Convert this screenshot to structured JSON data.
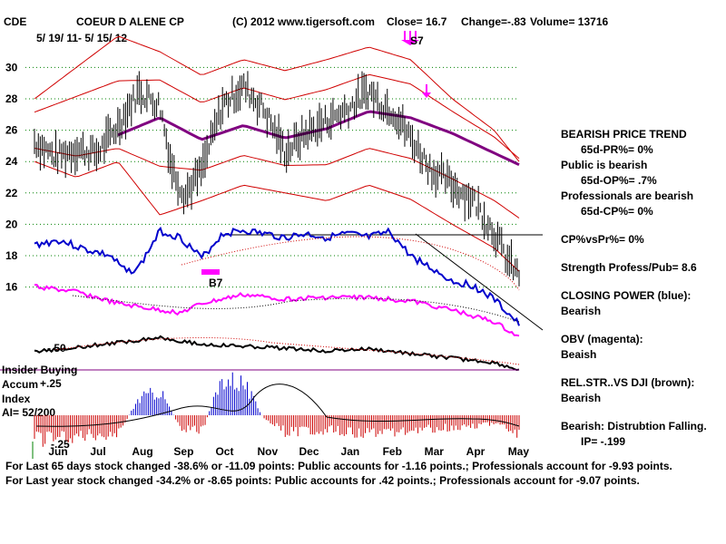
{
  "header": {
    "ticker": "CDE",
    "company": "COEUR D ALENE CP",
    "copyright": "(C) 2012 www.tigersoft.com",
    "close": "Close=  16.7",
    "change": "Change=-.83",
    "volume": "Volume= 13716",
    "date_range": "5/ 19/ 11- 5/ 15/ 12"
  },
  "signals": {
    "sell": "S7",
    "buy": "B7"
  },
  "left_labels": {
    "insider_buying": "Insider Buying",
    "accum": "Accum",
    "index": "Index",
    "ai": "AI= 52/200",
    "obv_level": "-.50",
    "plus_25": "+.25",
    "minus_25": "-.25"
  },
  "side_panel": {
    "trend_title": "BEARISH PRICE TREND",
    "trend_value": "65d-PR%= 0%",
    "public_title": "Public is bearish",
    "public_value": "65d-OP%= .7%",
    "pro_title": "Professionals are bearish",
    "pro_value": "65d-CP%= 0%",
    "cp_vs_pr": "CP%vsPr%=  0%",
    "strength": "Strength Profess/Pub= 8.6",
    "closing_power_title": "CLOSING POWER (blue):",
    "closing_power_value": "Bearish",
    "obv_title": "OBV (magenta):",
    "obv_value": "Beaish",
    "relstr_title": "REL.STR..VS DJI (brown):",
    "relstr_value": "Bearish",
    "distribution_title": "Bearish: Distrubtion Falling.",
    "ip_value": "IP= -.199"
  },
  "footer": {
    "line1": "For Last 65 days stock changed -38.6% or -11.09 points:  Public accounts for -1.16 points.;  Professionals account for -9.93 points.",
    "line2": "For Last year stock changed -34.2% or -8.65 points:  Public accounts for  .42 points.;  Professionals account for -9.07 points."
  },
  "colors": {
    "price": "#000000",
    "bands": "#d00000",
    "moving_average": "#800080",
    "closing_power": "#0000cc",
    "obv": "#ff00ff",
    "rel_strength": "#000000",
    "accum_positive": "#0000cc",
    "accum_negative": "#cc0000",
    "grid": "#008000"
  },
  "chart_data": {
    "type": "line",
    "title": "COEUR D ALENE CP",
    "x_tick_labels": [
      "Jun",
      "Jul",
      "Aug",
      "Sep",
      "Oct",
      "Nov",
      "Dec",
      "Jan",
      "Feb",
      "Mar",
      "Apr",
      "May"
    ],
    "y_tick_labels": [
      "30",
      "28",
      "26",
      "24",
      "22",
      "20",
      "18",
      "16"
    ],
    "ylim": [
      15,
      32
    ],
    "series": [
      {
        "name": "Price",
        "months": [
          0,
          0.5,
          1,
          1.5,
          2,
          2.5,
          3,
          3.3,
          3.6,
          4,
          4.5,
          5,
          5.5,
          6,
          6.5,
          7,
          7.5,
          8,
          8.3,
          8.6,
          9,
          9.5,
          10,
          10.5,
          11,
          11.3,
          11.6
        ],
        "values": [
          25.3,
          24.3,
          24.8,
          24.5,
          26.3,
          28.5,
          27.6,
          23.5,
          21.9,
          23.4,
          27.6,
          28.8,
          27.3,
          24.6,
          25.8,
          26.6,
          27.4,
          28.5,
          27.7,
          27.2,
          25.5,
          23.5,
          22.5,
          21.6,
          19.5,
          17.8,
          16.7
        ]
      },
      {
        "name": "Moving average",
        "months": [
          2,
          3,
          4,
          5,
          6,
          7,
          8,
          9,
          10,
          11.6
        ],
        "values": [
          25.7,
          26.8,
          25.4,
          26.3,
          25.5,
          26.1,
          27.2,
          26.8,
          25.8,
          23.8
        ]
      },
      {
        "name": "Upper band",
        "months": [
          0,
          1,
          2,
          3,
          4,
          5,
          6,
          7,
          8,
          9,
          10,
          11,
          11.6
        ],
        "values": [
          28,
          30,
          32,
          31,
          29.5,
          30.5,
          29.8,
          30.5,
          31.3,
          30.5,
          28,
          26,
          24
        ]
      },
      {
        "name": "Lower band",
        "months": [
          0,
          1,
          2,
          3,
          4,
          5,
          6,
          7,
          8,
          9,
          10,
          11,
          11.6
        ],
        "values": [
          24,
          23,
          24,
          20.6,
          21.5,
          22.5,
          22,
          21.5,
          22.5,
          21.6,
          20,
          18.5,
          17
        ]
      }
    ],
    "horizontal_line": 19.3,
    "indicator_panel": {
      "ylabel": "Accum Index",
      "range": [
        -0.25,
        0.25
      ],
      "level_marker": 0.25
    }
  }
}
